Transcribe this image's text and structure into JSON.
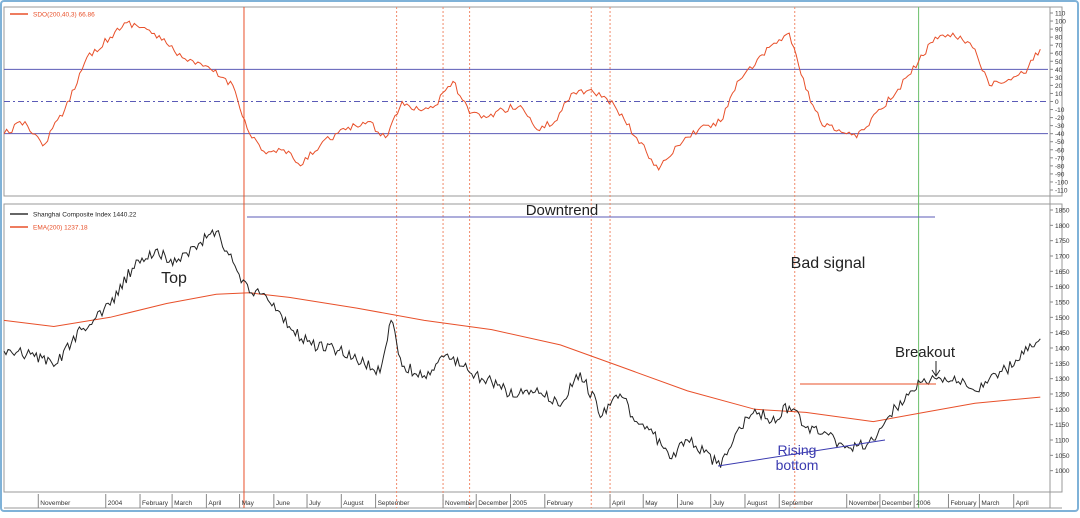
{
  "chart_data": [
    {
      "type": "line",
      "panel": "oscillator",
      "legend": [
        {
          "label": "SDO(200,40,3) 66.86",
          "color": "#e8502a"
        }
      ],
      "ylim": [
        -110,
        110
      ],
      "y_ticks": [
        "110",
        "100",
        "90",
        "80",
        "70",
        "60",
        "50",
        "40",
        "30",
        "20",
        "10",
        "0",
        "-10",
        "-20",
        "-30",
        "-40",
        "-50",
        "-60",
        "-70",
        "-80",
        "-90",
        "-100",
        "-110"
      ],
      "reference_lines": [
        {
          "value": 40,
          "style": "solid",
          "color": "#5b5bb7"
        },
        {
          "value": 0,
          "style": "dash-dot",
          "color": "#5b5bb7"
        },
        {
          "value": -40,
          "style": "solid",
          "color": "#5b5bb7"
        }
      ],
      "series": [
        {
          "x": [
            "2003-10-01",
            "2003-10-20",
            "2003-11-05",
            "2003-11-25",
            "2003-12-15",
            "2004-01-05",
            "2004-01-20",
            "2004-02-05",
            "2004-02-25",
            "2004-03-15",
            "2004-04-05",
            "2004-04-25",
            "2004-05-10",
            "2004-05-25",
            "2004-06-10",
            "2004-06-25",
            "2004-07-15",
            "2004-08-05",
            "2004-08-25",
            "2004-09-10",
            "2004-09-25",
            "2004-10-10",
            "2004-10-25",
            "2004-11-10",
            "2004-11-25",
            "2004-12-10",
            "2004-12-25",
            "2005-01-10",
            "2005-01-25",
            "2005-02-10",
            "2005-02-25",
            "2005-03-15",
            "2005-04-05",
            "2005-04-25",
            "2005-05-15",
            "2005-06-01",
            "2005-06-20",
            "2005-07-10",
            "2005-07-25",
            "2005-08-10",
            "2005-08-25",
            "2005-09-10",
            "2005-09-25",
            "2005-10-10",
            "2005-10-25",
            "2005-11-10",
            "2005-11-30",
            "2005-12-15",
            "2006-01-05",
            "2006-01-20",
            "2006-02-05",
            "2006-02-25",
            "2006-03-10",
            "2006-03-25",
            "2006-04-10",
            "2006-04-25"
          ],
          "values": [
            -40,
            -25,
            -55,
            -10,
            55,
            80,
            98,
            92,
            72,
            50,
            40,
            20,
            -40,
            -65,
            -60,
            -80,
            -50,
            -35,
            -25,
            -45,
            0,
            -10,
            -5,
            25,
            -15,
            -20,
            -10,
            -5,
            -35,
            -25,
            10,
            15,
            -5,
            -45,
            -85,
            -55,
            -35,
            -25,
            25,
            45,
            70,
            85,
            15,
            -30,
            -35,
            -45,
            -10,
            10,
            50,
            80,
            85,
            65,
            20,
            25,
            35,
            65
          ]
        }
      ]
    },
    {
      "type": "line",
      "panel": "price",
      "legend": [
        {
          "label": "Shanghai Composite Index 1440.22",
          "color": "#333333"
        },
        {
          "label": "EMA(200) 1237.18",
          "color": "#e8502a"
        }
      ],
      "ylim": [
        950,
        1850
      ],
      "y_ticks": [
        "1850",
        "1800",
        "1750",
        "1700",
        "1650",
        "1600",
        "1550",
        "1500",
        "1450",
        "1400",
        "1350",
        "1300",
        "1250",
        "1200",
        "1150",
        "1100",
        "1050",
        "1000"
      ],
      "series": [
        {
          "name": "Shanghai Composite Index",
          "x": [
            "2003-10-01",
            "2003-10-25",
            "2003-11-15",
            "2003-12-10",
            "2004-01-05",
            "2004-01-25",
            "2004-02-15",
            "2004-03-05",
            "2004-03-25",
            "2004-04-10",
            "2004-04-25",
            "2004-05-10",
            "2004-05-25",
            "2004-06-15",
            "2004-07-05",
            "2004-07-25",
            "2004-08-15",
            "2004-09-05",
            "2004-09-15",
            "2004-09-25",
            "2004-10-15",
            "2004-11-05",
            "2004-11-25",
            "2004-12-15",
            "2005-01-05",
            "2005-01-25",
            "2005-02-15",
            "2005-03-05",
            "2005-03-25",
            "2005-04-10",
            "2005-04-25",
            "2005-05-10",
            "2005-05-25",
            "2005-06-10",
            "2005-06-25",
            "2005-07-10",
            "2005-07-25",
            "2005-08-10",
            "2005-08-25",
            "2005-09-10",
            "2005-09-25",
            "2005-10-10",
            "2005-10-25",
            "2005-11-10",
            "2005-11-25",
            "2005-12-10",
            "2005-12-25",
            "2006-01-10",
            "2006-01-25",
            "2006-02-10",
            "2006-02-25",
            "2006-03-10",
            "2006-03-25",
            "2006-04-10",
            "2006-04-25"
          ],
          "values": [
            1390,
            1380,
            1340,
            1460,
            1540,
            1660,
            1720,
            1680,
            1740,
            1780,
            1680,
            1580,
            1570,
            1470,
            1410,
            1400,
            1360,
            1320,
            1490,
            1340,
            1310,
            1380,
            1320,
            1290,
            1240,
            1270,
            1210,
            1320,
            1180,
            1250,
            1160,
            1120,
            1040,
            1100,
            1060,
            1010,
            1130,
            1200,
            1160,
            1210,
            1140,
            1120,
            1090,
            1080,
            1100,
            1180,
            1250,
            1300,
            1300,
            1290,
            1260,
            1300,
            1330,
            1380,
            1430
          ]
        },
        {
          "name": "EMA(200)",
          "x": [
            "2003-10-01",
            "2003-11-15",
            "2004-01-05",
            "2004-02-25",
            "2004-04-10",
            "2004-05-10",
            "2004-06-15",
            "2004-08-15",
            "2004-10-15",
            "2004-12-15",
            "2005-02-15",
            "2005-04-10",
            "2005-06-10",
            "2005-08-10",
            "2005-09-25",
            "2005-11-25",
            "2006-01-10",
            "2006-02-25",
            "2006-04-25"
          ],
          "values": [
            1490,
            1470,
            1500,
            1545,
            1575,
            1580,
            1565,
            1530,
            1490,
            1460,
            1410,
            1340,
            1260,
            1200,
            1190,
            1160,
            1190,
            1220,
            1240
          ]
        }
      ]
    }
  ],
  "x_axis": {
    "month_labels": [
      "November",
      "2004",
      "February",
      "March",
      "April",
      "May",
      "June",
      "July",
      "August",
      "September",
      "November",
      "December",
      "2005",
      "February",
      "April",
      "May",
      "June",
      "July",
      "August",
      "September",
      "November",
      "December",
      "2006",
      "February",
      "March",
      "April"
    ]
  },
  "annotations": {
    "downtrend": "Downtrend",
    "top": "Top",
    "bad_signal": "Bad signal",
    "breakout": "Breakout",
    "rising_bottom_line1": "Rising",
    "rising_bottom_line2": "bottom"
  },
  "colors": {
    "oscillator_line": "#e8502a",
    "price_line": "#222222",
    "ema_line": "#e8502a",
    "reference_line": "#5b5bb7",
    "signal_vline": "#f08a6a",
    "green_vline": "#6abf6a",
    "annotation_blue": "#3b3bb0",
    "frame_border": "#7fb2d8"
  }
}
